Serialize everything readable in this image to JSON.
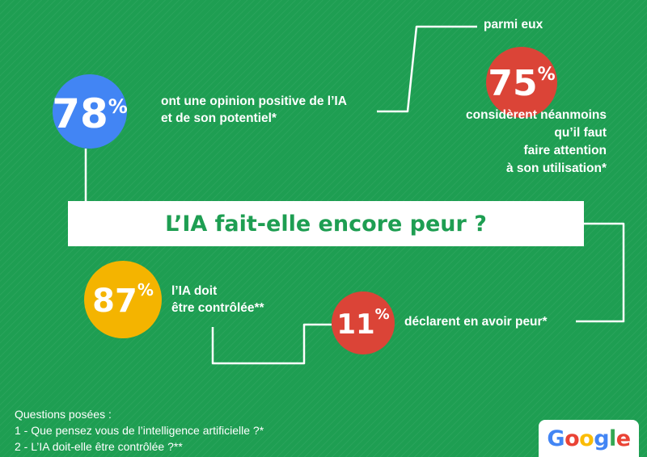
{
  "stats": {
    "s78": {
      "value": "78",
      "unit": "%",
      "color": "#4285f4",
      "line1": "ont une opinion positive de l’IA",
      "line2": "et de son potentiel*"
    },
    "s75": {
      "value": "75",
      "unit": "%",
      "color": "#db4437",
      "intro": "parmi eux",
      "line1": "considèrent néanmoins",
      "line2": "qu’il faut",
      "line3": "faire attention",
      "line4": "à son utilisation*"
    },
    "s87": {
      "value": "87",
      "unit": "%",
      "color": "#f4b400",
      "line1": "l’IA doit",
      "line2": "être contrôlée**"
    },
    "s11": {
      "value": "11",
      "unit": "%",
      "color": "#db4437",
      "line1": "déclarent en avoir peur*"
    }
  },
  "title": "L’IA fait-elle encore peur ?",
  "questions": {
    "heading": "Questions posées :",
    "q1": "1 - Que pensez vous de l’intelligence artificielle ?*",
    "q2": "2 - L’IA doit-elle être contrôlée ?**"
  },
  "logo": {
    "letters": [
      "G",
      "o",
      "o",
      "g",
      "l",
      "e"
    ],
    "colors": [
      "#4285f4",
      "#ea4335",
      "#fbbc05",
      "#4285f4",
      "#34a853",
      "#ea4335"
    ]
  },
  "background_color": "#1e9e52"
}
